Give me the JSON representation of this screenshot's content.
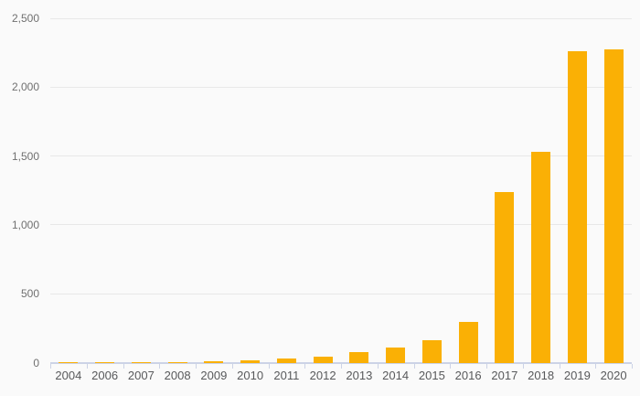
{
  "chart_data": {
    "type": "bar",
    "title": "",
    "xlabel": "",
    "ylabel": "",
    "categories": [
      "2004",
      "2006",
      "2007",
      "2008",
      "2009",
      "2010",
      "2011",
      "2012",
      "2013",
      "2014",
      "2015",
      "2016",
      "2017",
      "2018",
      "2019",
      "2020"
    ],
    "values": [
      1,
      1,
      2,
      3,
      13,
      20,
      28,
      45,
      78,
      110,
      160,
      295,
      1240,
      1530,
      2260,
      2275
    ],
    "ylim": [
      0,
      2500
    ],
    "yticks": [
      0,
      500,
      1000,
      1500,
      2000,
      2500
    ],
    "ytick_labels": [
      "0",
      "500",
      "1,000",
      "1,500",
      "2,000",
      "2,500"
    ],
    "grid": true,
    "legend": false,
    "bar_color": "#fab005"
  },
  "colors": {
    "background": "#fafafa",
    "gridline": "#e8e8e8",
    "axis_line": "#ccd3e6",
    "y_label_text": "#707070",
    "x_label_text": "#58595b",
    "bar": "#fab005"
  }
}
